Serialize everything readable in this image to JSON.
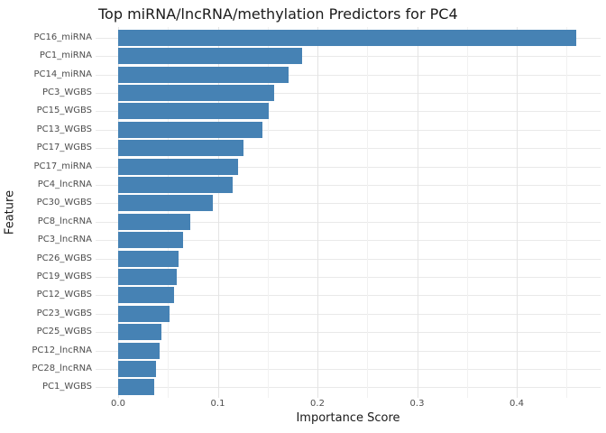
{
  "chart_data": {
    "type": "bar",
    "orientation": "horizontal",
    "title": "Top miRNA/lncRNA/methylation Predictors for PC4",
    "xlabel": "Importance Score",
    "ylabel": "Feature",
    "categories": [
      "PC16_miRNA",
      "PC1_miRNA",
      "PC14_miRNA",
      "PC3_WGBS",
      "PC15_WGBS",
      "PC13_WGBS",
      "PC17_WGBS",
      "PC17_miRNA",
      "PC4_lncRNA",
      "PC30_WGBS",
      "PC8_lncRNA",
      "PC3_lncRNA",
      "PC26_WGBS",
      "PC19_WGBS",
      "PC12_WGBS",
      "PC23_WGBS",
      "PC25_WGBS",
      "PC12_lncRNA",
      "PC28_lncRNA",
      "PC1_WGBS"
    ],
    "values": [
      0.46,
      0.185,
      0.171,
      0.157,
      0.151,
      0.145,
      0.126,
      0.12,
      0.115,
      0.095,
      0.072,
      0.065,
      0.061,
      0.059,
      0.056,
      0.052,
      0.043,
      0.042,
      0.038,
      0.036
    ],
    "x_ticks": [
      0.0,
      0.1,
      0.2,
      0.3,
      0.4
    ],
    "x_tick_labels": [
      "0.0",
      "0.1",
      "0.2",
      "0.3",
      "0.4"
    ],
    "x_minor_ticks": [
      0.05,
      0.15,
      0.25,
      0.35,
      0.45
    ],
    "xlim": [
      -0.023,
      0.487
    ],
    "grid": "major and minor, horizontal category lines",
    "legend": "none",
    "colors": {
      "bar": "#4682B4",
      "grid_major": "#e4e4e4",
      "grid_minor": "#f1f1f1",
      "grid_rows": "#e9e9e9",
      "tick_text": "#4d4d4d",
      "title_text": "#1a1a1a",
      "background": "#ffffff"
    }
  }
}
